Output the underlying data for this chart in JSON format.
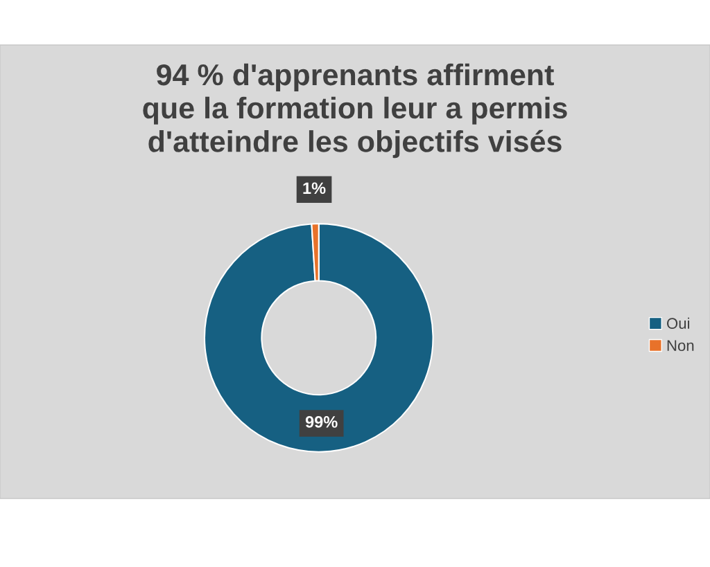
{
  "chart_data": {
    "type": "donut",
    "title": "94 % d'apprenants affirment\nque la formation leur a permis\nd'atteindre les objectifs visés",
    "categories": [
      "Oui",
      "Non"
    ],
    "values": [
      99,
      1
    ],
    "colors": [
      "#166082",
      "#e8722a"
    ],
    "value_labels": [
      "99%",
      "1%"
    ],
    "legend": "right"
  }
}
